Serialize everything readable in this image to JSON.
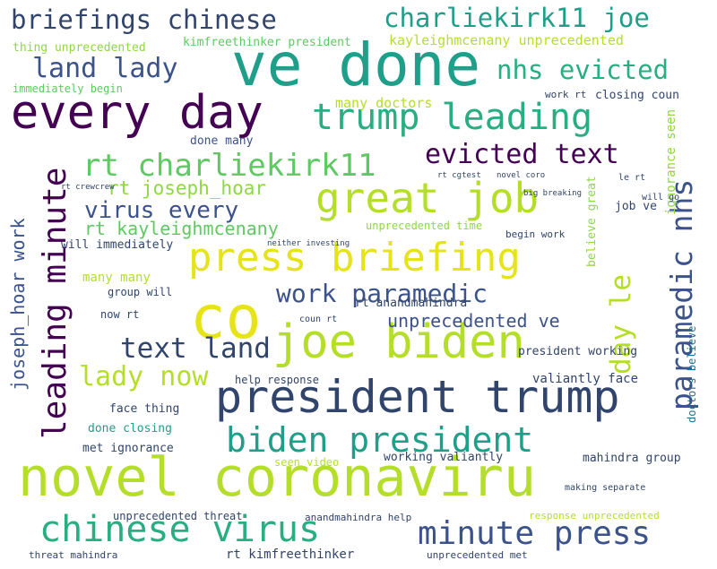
{
  "colors": {
    "dark_purple": "#440154",
    "indigo": "#3b528b",
    "navy": "#31446b",
    "teal_blue": "#21718e",
    "teal": "#1f9e89",
    "green_teal": "#28ae80",
    "green": "#5ec962",
    "light_green": "#8fd744",
    "yellow_green": "#b5de2b",
    "yellow": "#e6e419"
  },
  "words": [
    {
      "text": "novel coronaviru",
      "color": "yellow_green"
    },
    {
      "text": "ve done",
      "color": "teal"
    },
    {
      "text": "co",
      "color": "yellow"
    },
    {
      "text": "every day",
      "color": "dark_purple"
    },
    {
      "text": "joe biden",
      "color": "yellow_green"
    },
    {
      "text": "president trump",
      "color": "navy"
    },
    {
      "text": "great job",
      "color": "yellow_green"
    },
    {
      "text": "press briefing",
      "color": "yellow"
    },
    {
      "text": "chinese virus",
      "color": "green_teal"
    },
    {
      "text": "trump leading",
      "color": "green_teal"
    },
    {
      "text": "leading minute",
      "color": "dark_purple"
    },
    {
      "text": "biden president",
      "color": "teal"
    },
    {
      "text": "minute press",
      "color": "indigo"
    },
    {
      "text": "briefings chinese",
      "color": "navy"
    },
    {
      "text": "charliekirk11 joe",
      "color": "teal"
    },
    {
      "text": "rt charliekirk11",
      "color": "green"
    },
    {
      "text": "evicted text",
      "color": "dark_purple"
    },
    {
      "text": "nhs evicted",
      "color": "green_teal"
    },
    {
      "text": "paramedic nhs",
      "color": "indigo"
    },
    {
      "text": "land lady",
      "color": "indigo"
    },
    {
      "text": "text land",
      "color": "navy"
    },
    {
      "text": "work paramedic",
      "color": "indigo"
    },
    {
      "text": "day le",
      "color": "yellow_green"
    },
    {
      "text": "lady now",
      "color": "yellow_green"
    },
    {
      "text": "virus every",
      "color": "indigo"
    },
    {
      "text": "joseph_hoar work",
      "color": "indigo"
    },
    {
      "text": "rt joseph_hoar",
      "color": "light_green"
    },
    {
      "text": "rt kayleighmcenany",
      "color": "green"
    },
    {
      "text": "unprecedented ve",
      "color": "indigo"
    },
    {
      "text": "kimfreethinker president",
      "color": "green"
    },
    {
      "text": "kayleighmcenany unprecedented",
      "color": "yellow_green"
    },
    {
      "text": "thing unprecedented",
      "color": "light_green"
    },
    {
      "text": "many doctors",
      "color": "yellow_green"
    },
    {
      "text": "done many",
      "color": "indigo"
    },
    {
      "text": "closing coun",
      "color": "navy"
    },
    {
      "text": "many many",
      "color": "yellow_green"
    },
    {
      "text": "will immediately",
      "color": "navy"
    },
    {
      "text": "immediately begin",
      "color": "green"
    },
    {
      "text": "ignorance seen",
      "color": "light_green"
    },
    {
      "text": "believe great",
      "color": "light_green"
    },
    {
      "text": "doctors believe",
      "color": "teal_blue"
    },
    {
      "text": "valiantly face",
      "color": "navy"
    },
    {
      "text": "face thing",
      "color": "navy"
    },
    {
      "text": "done closing",
      "color": "teal"
    },
    {
      "text": "met ignorance",
      "color": "navy"
    },
    {
      "text": "working valiantly",
      "color": "navy"
    },
    {
      "text": "seen video",
      "color": "yellow_green"
    },
    {
      "text": "help response",
      "color": "navy"
    },
    {
      "text": "president working",
      "color": "navy"
    },
    {
      "text": "mahindra group",
      "color": "navy"
    },
    {
      "text": "unprecedented threat",
      "color": "navy"
    },
    {
      "text": "anandmahindra help",
      "color": "navy"
    },
    {
      "text": "response unprecedented",
      "color": "yellow_green"
    },
    {
      "text": "threat mahindra",
      "color": "navy"
    },
    {
      "text": "rt kimfreethinker",
      "color": "navy"
    },
    {
      "text": "unprecedented met",
      "color": "navy"
    },
    {
      "text": "rt anandmahindra",
      "color": "navy"
    },
    {
      "text": "group will",
      "color": "navy"
    },
    {
      "text": "now rt",
      "color": "navy"
    },
    {
      "text": "unprecedented time",
      "color": "light_green"
    },
    {
      "text": "begin work",
      "color": "navy"
    },
    {
      "text": "job ve",
      "color": "navy"
    },
    {
      "text": "work rt",
      "color": "navy"
    },
    {
      "text": "rt crewcrew",
      "color": "navy"
    },
    {
      "text": "le rt",
      "color": "navy"
    },
    {
      "text": "coun rt",
      "color": "navy"
    },
    {
      "text": "novel coro",
      "color": "navy"
    },
    {
      "text": "making separate",
      "color": "navy"
    },
    {
      "text": "rt cgtest",
      "color": "navy"
    },
    {
      "text": "neither investing",
      "color": "navy"
    },
    {
      "text": "big breaking",
      "color": "navy"
    },
    {
      "text": "will go",
      "color": "navy"
    }
  ]
}
